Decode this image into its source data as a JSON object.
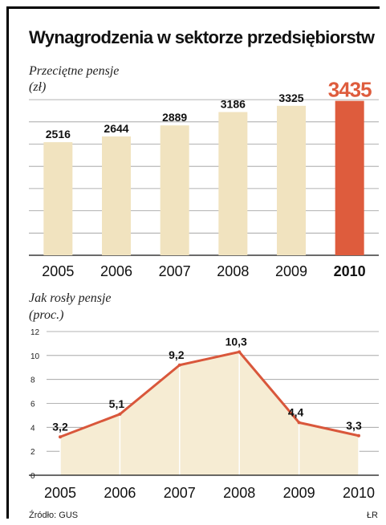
{
  "title": "Wynagrodzenia w sektorze przedsiębiorstw",
  "source": "Źródło: GUS",
  "author": "ŁR",
  "colors": {
    "bar": "#f1e3bf",
    "highlight": "#de5c3d",
    "line": "#d9573b",
    "area": "#f6ecd3",
    "grid": "#9a9a9a"
  },
  "chart_data": [
    {
      "type": "bar",
      "title": "Przeciętne pensje",
      "unit": "(zł)",
      "categories": [
        "2005",
        "2006",
        "2007",
        "2008",
        "2009",
        "2010"
      ],
      "values": [
        2516,
        2644,
        2889,
        3186,
        3325,
        3435
      ],
      "value_labels": [
        "2516",
        "2644",
        "2889",
        "3186",
        "3325",
        "3435"
      ],
      "highlight": "2010",
      "ylim": [
        0,
        3500
      ],
      "grid": true
    },
    {
      "type": "area",
      "title": "Jak rosły pensje",
      "unit": "(proc.)",
      "categories": [
        "2005",
        "2006",
        "2007",
        "2008",
        "2009",
        "2010"
      ],
      "values": [
        3.2,
        5.1,
        9.2,
        10.3,
        4.4,
        3.3
      ],
      "value_labels": [
        "3,2",
        "5,1",
        "9,2",
        "10,3",
        "4,4",
        "3,3"
      ],
      "yticks": [
        "0",
        "2",
        "4",
        "6",
        "8",
        "10",
        "12"
      ],
      "ylim": [
        0,
        12
      ],
      "grid": true
    }
  ]
}
